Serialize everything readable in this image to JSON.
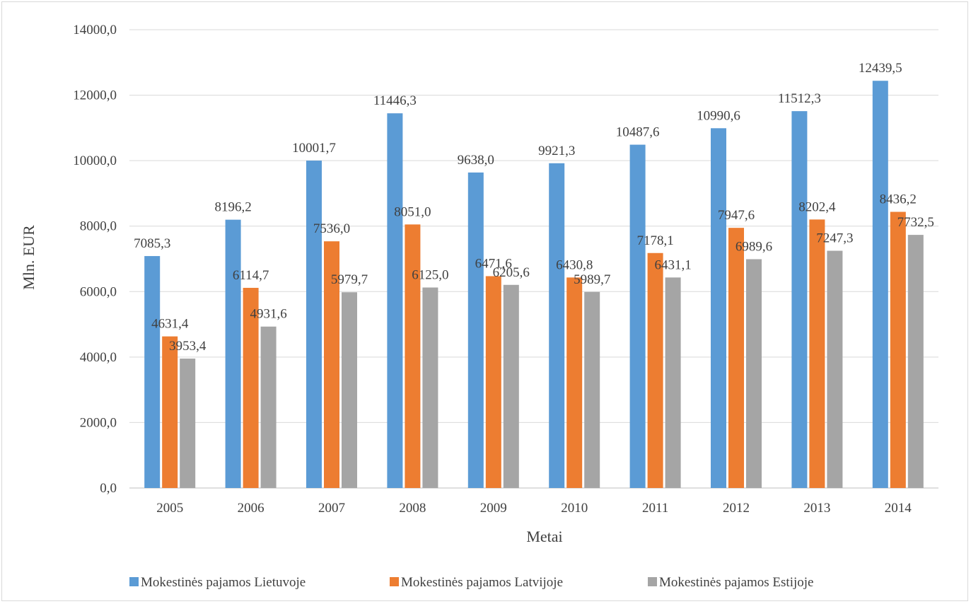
{
  "chart_data": {
    "type": "bar",
    "title": "",
    "xlabel": "Metai",
    "ylabel": "Mln. EUR",
    "ylim": [
      0,
      14000
    ],
    "y_ticks": [
      "0,0",
      "2000,0",
      "4000,0",
      "6000,0",
      "8000,0",
      "10000,0",
      "12000,0",
      "14000,0"
    ],
    "grid": true,
    "legend_position": "bottom",
    "categories": [
      "2005",
      "2006",
      "2007",
      "2008",
      "2009",
      "2010",
      "2011",
      "2012",
      "2013",
      "2014"
    ],
    "series": [
      {
        "name": "Mokestinės pajamos Lietuvoje",
        "color": "#5b9bd5",
        "values": [
          7085.3,
          8196.2,
          10001.7,
          11446.3,
          9638.0,
          9921.3,
          10487.6,
          10990.6,
          11512.3,
          12439.5
        ],
        "labels": [
          "7085,3",
          "8196,2",
          "10001,7",
          "11446,3",
          "9638,0",
          "9921,3",
          "10487,6",
          "10990,6",
          "11512,3",
          "12439,5"
        ]
      },
      {
        "name": "Mokestinės pajamos Latvijoje",
        "color": "#ed7d31",
        "values": [
          4631.4,
          6114.7,
          7536.0,
          8051.0,
          6471.6,
          6430.8,
          7178.1,
          7947.6,
          8202.4,
          8436.2
        ],
        "labels": [
          "4631,4",
          "6114,7",
          "7536,0",
          "8051,0",
          "6471,6",
          "6430,8",
          "7178,1",
          "7947,6",
          "8202,4",
          "8436,2"
        ]
      },
      {
        "name": "Mokestinės pajamos Estijoje",
        "color": "#a5a5a5",
        "values": [
          3953.4,
          4931.6,
          5979.7,
          6125.0,
          6205.6,
          5989.7,
          6431.1,
          6989.6,
          7247.3,
          7732.5
        ],
        "labels": [
          "3953,4",
          "4931,6",
          "5979,7",
          "6125,0",
          "6205,6",
          "5989,7",
          "6431,1",
          "6989,6",
          "7247,3",
          "7732,5"
        ]
      }
    ]
  }
}
